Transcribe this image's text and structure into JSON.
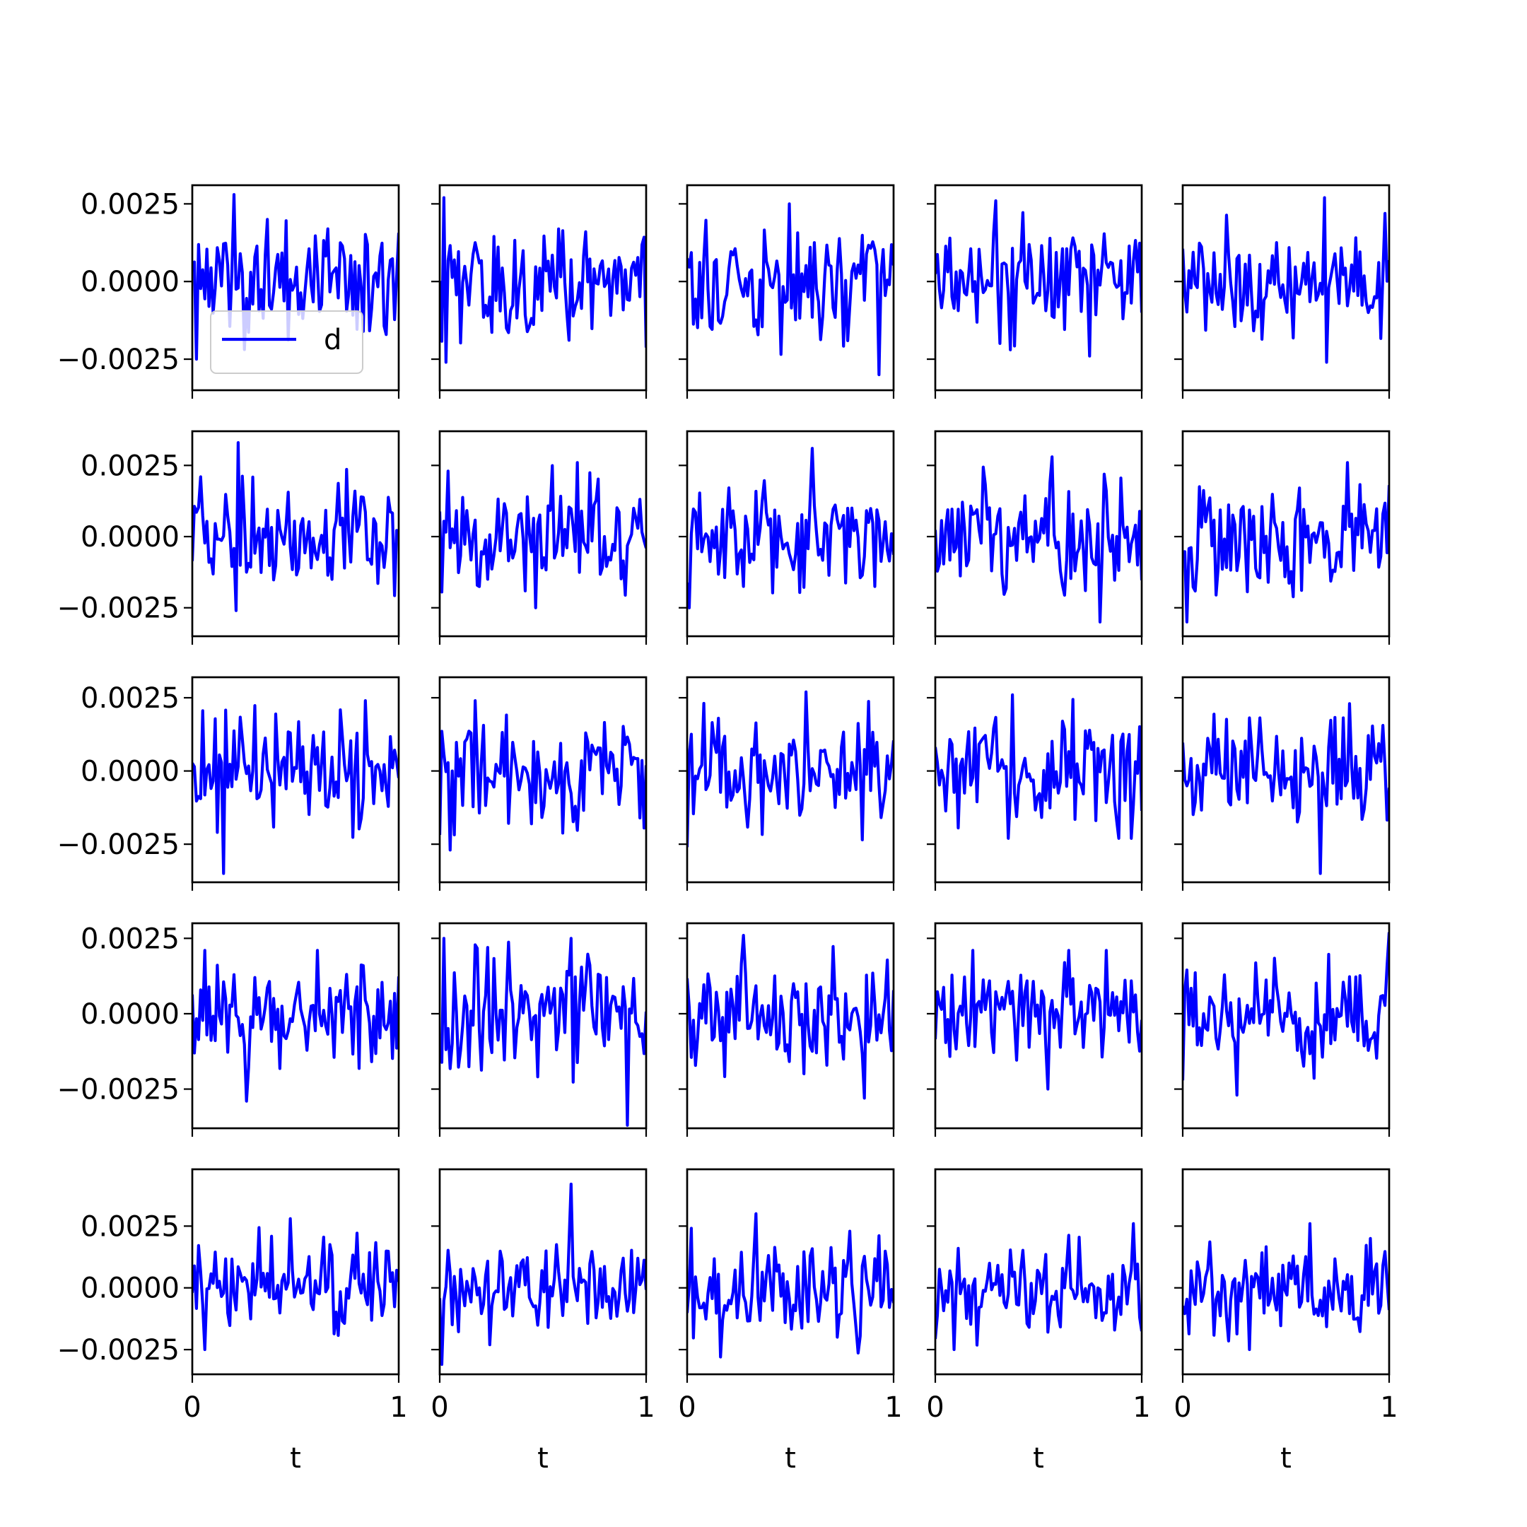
{
  "chart_data": {
    "type": "line",
    "layout": "5x5 grid of subplots",
    "x_range": [
      0,
      1
    ],
    "x_ticks": [
      "0",
      "1"
    ],
    "xlabel": "t",
    "y_tick_labels": [
      "0.0025",
      "0.0000",
      "−0.0025"
    ],
    "y_ticks": [
      0.0025,
      0.0,
      -0.0025
    ],
    "color": "#0000ff",
    "legend": {
      "label": "d",
      "placement": "lower-left",
      "panel": [
        0,
        0
      ]
    },
    "samples_per_panel": 100,
    "noise_std": 0.001,
    "rows": [
      {
        "ylim": [
          -0.0035,
          0.0031
        ],
        "tick_labels_shown": true
      },
      {
        "ylim": [
          -0.0035,
          0.0037
        ],
        "tick_labels_shown": true
      },
      {
        "ylim": [
          -0.0038,
          0.0032
        ],
        "tick_labels_shown": true
      },
      {
        "ylim": [
          -0.0038,
          0.003
        ],
        "tick_labels_shown": true
      },
      {
        "ylim": [
          -0.0035,
          0.0048
        ],
        "tick_labels_shown": true
      }
    ],
    "panel_extremes": [
      [
        [
          -0.0025,
          0.0028
        ],
        [
          -0.0026,
          0.0027
        ],
        [
          -0.003,
          0.0025
        ],
        [
          -0.0024,
          0.0026
        ],
        [
          -0.0026,
          0.0027
        ]
      ],
      [
        [
          -0.0026,
          0.0033
        ],
        [
          -0.0025,
          0.0026
        ],
        [
          -0.0025,
          0.0031
        ],
        [
          -0.003,
          0.0028
        ],
        [
          -0.003,
          0.0026
        ]
      ],
      [
        [
          -0.0035,
          0.0024
        ],
        [
          -0.0027,
          0.0024
        ],
        [
          -0.0026,
          0.0027
        ],
        [
          -0.0023,
          0.0026
        ],
        [
          -0.0035,
          0.0023
        ]
      ],
      [
        [
          -0.0029,
          0.0021
        ],
        [
          -0.0037,
          0.0025
        ],
        [
          -0.0028,
          0.0026
        ],
        [
          -0.0025,
          0.0021
        ],
        [
          -0.0027,
          0.0027
        ]
      ],
      [
        [
          -0.0025,
          0.0028
        ],
        [
          -0.0031,
          0.0042
        ],
        [
          -0.0028,
          0.003
        ],
        [
          -0.0025,
          0.0026
        ],
        [
          -0.0025,
          0.0026
        ]
      ]
    ]
  }
}
